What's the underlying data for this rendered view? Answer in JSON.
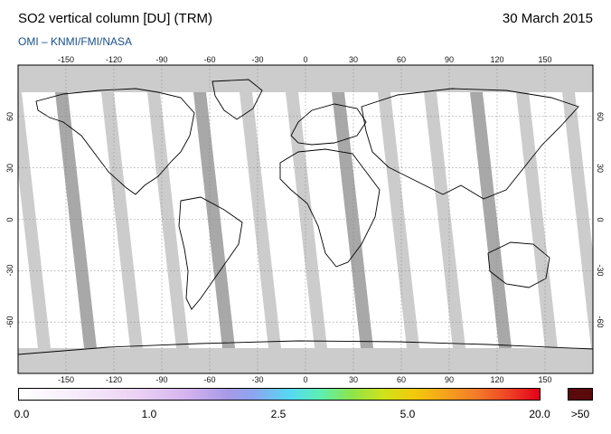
{
  "header": {
    "title": "SO2 vertical column [DU] (TRM)",
    "date": "30 March 2015",
    "credit": "OMI  –  KNMI/FMI/NASA"
  },
  "map": {
    "lon_ticks": [
      "-150",
      "-120",
      "-90",
      "-60",
      "-30",
      "0",
      "30",
      "60",
      "90",
      "120",
      "150"
    ],
    "lat_ticks": [
      "60",
      "30",
      "0",
      "-30",
      "-60"
    ],
    "colors": {
      "land_outline": "#000000",
      "no_data": "#cccccc",
      "ocean": "#ffffff",
      "grid": "#888888"
    }
  },
  "colorbar": {
    "labels": [
      "0.0",
      "1.0",
      "2.5",
      "5.0",
      "20.0"
    ],
    "overflow_label": ">50"
  }
}
